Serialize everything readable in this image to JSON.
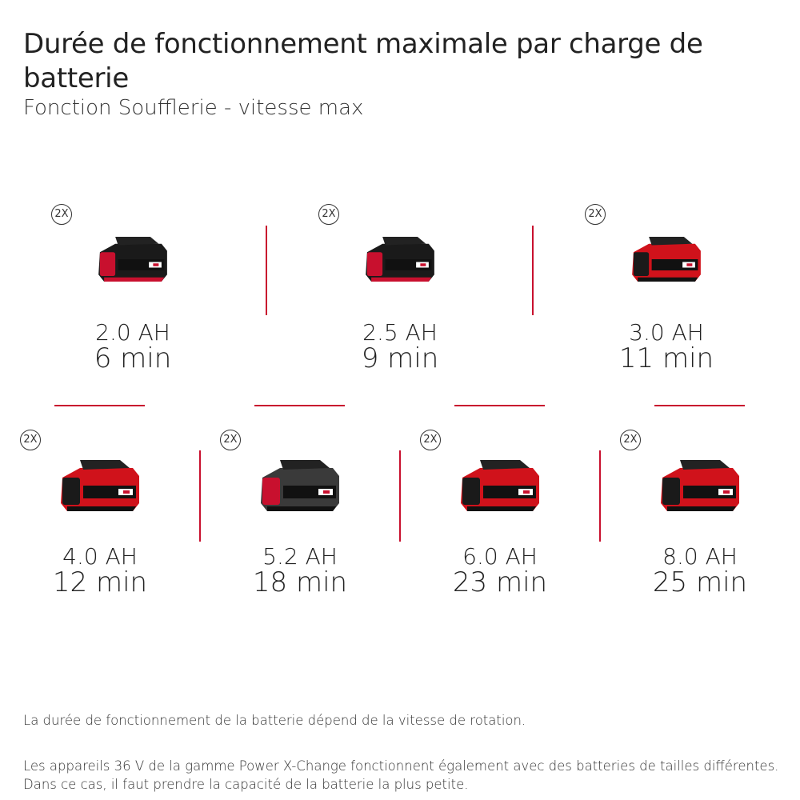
{
  "title": "Durée de fonctionnement maximale par charge de batterie",
  "subtitle": "Fonction Soufflerie - vitesse max",
  "accent_color": "#c8102e",
  "batteries": [
    {
      "badge": "2X",
      "capacity": "2.0 AH",
      "runtime": "6 min",
      "style": "dark"
    },
    {
      "badge": "2X",
      "capacity": "2.5 AH",
      "runtime": "9 min",
      "style": "dark"
    },
    {
      "badge": "2X",
      "capacity": "3.0 AH",
      "runtime": "11 min",
      "style": "red"
    },
    {
      "badge": "2X",
      "capacity": "4.0 AH",
      "runtime": "12 min",
      "style": "red"
    },
    {
      "badge": "2X",
      "capacity": "5.2 AH",
      "runtime": "18 min",
      "style": "grey"
    },
    {
      "badge": "2X",
      "capacity": "6.0 AH",
      "runtime": "23 min",
      "style": "red"
    },
    {
      "badge": "2X",
      "capacity": "8.0 AH",
      "runtime": "25 min",
      "style": "red"
    }
  ],
  "notes": [
    "La durée de fonctionnement de la batterie dépend de la vitesse de rotation.",
    "Les appareils 36 V de la gamme Power X-Change fonctionnent également avec des batteries de tailles différentes. Dans ce cas, il faut prendre la capacité de la batterie la plus petite."
  ]
}
